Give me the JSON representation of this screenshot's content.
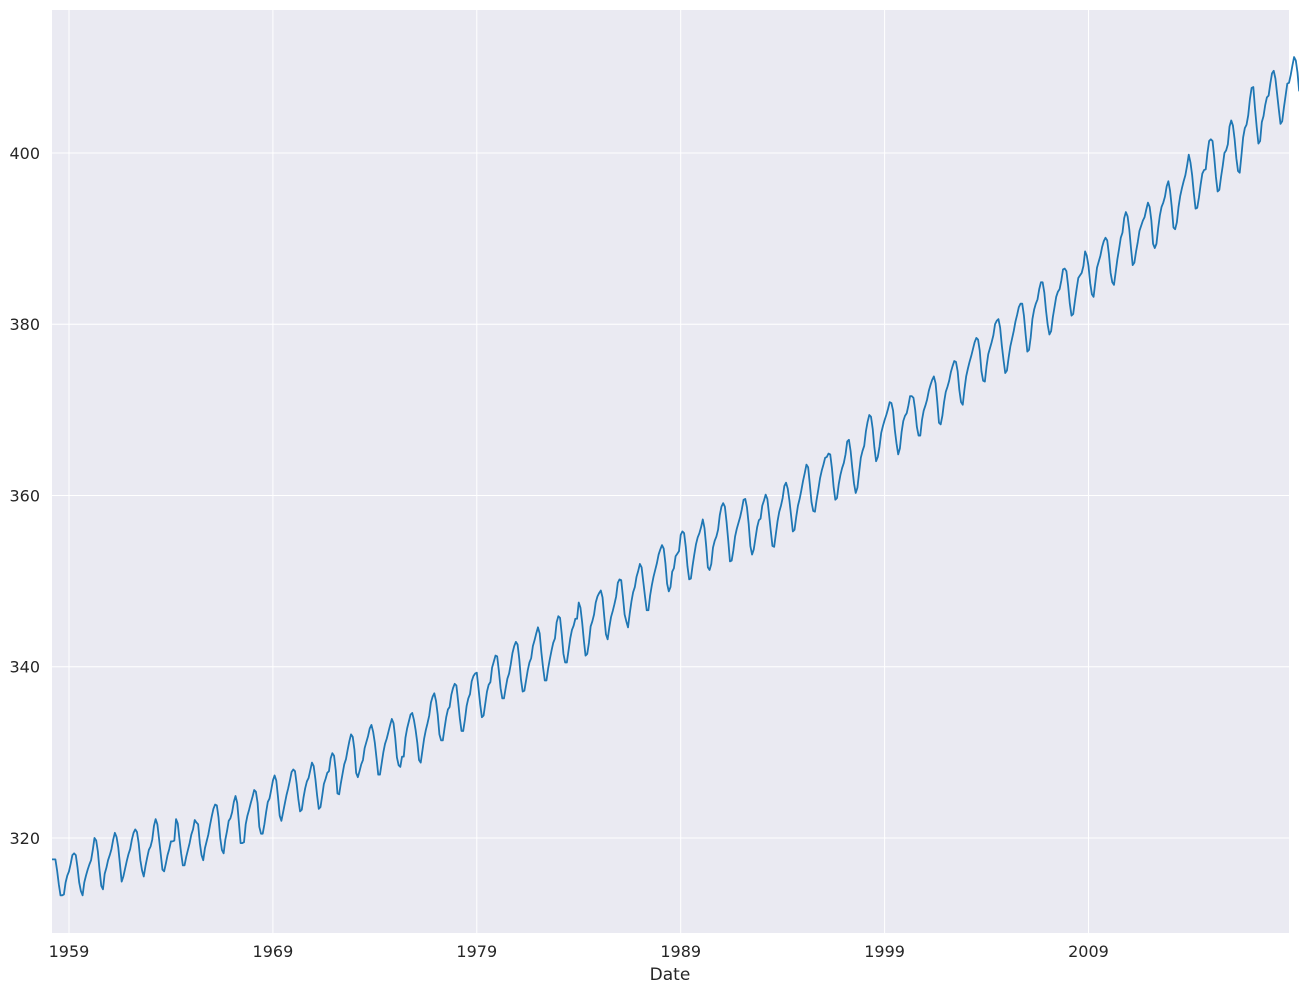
{
  "chart_data": {
    "type": "line",
    "title": "",
    "xlabel": "Date",
    "ylabel": "",
    "xlim": [
      "1958-03",
      "2018-11"
    ],
    "ylim": [
      308.9,
      416.7
    ],
    "x_ticks": [
      {
        "value": "1959-01",
        "label": "1959"
      },
      {
        "value": "1969-01",
        "label": "1969"
      },
      {
        "value": "1979-01",
        "label": "1979"
      },
      {
        "value": "1989-01",
        "label": "1989"
      },
      {
        "value": "1999-01",
        "label": "1999"
      },
      {
        "value": "2009-01",
        "label": "2009"
      }
    ],
    "y_ticks": [
      {
        "value": 320,
        "label": "320"
      },
      {
        "value": 340,
        "label": "340"
      },
      {
        "value": 360,
        "label": "360"
      },
      {
        "value": 380,
        "label": "380"
      },
      {
        "value": 400,
        "label": "400"
      }
    ],
    "grid": true,
    "background_color": "#eaeaf2",
    "grid_color": "#ffffff",
    "line_color": "#1f77b4",
    "series": [
      {
        "name": "",
        "x_start": "1958-03",
        "x_step": "1 month",
        "values": [
          317.5,
          317.5,
          317.5,
          316.2,
          314.6,
          313.3,
          313.3,
          313.4,
          314.8,
          315.6,
          316.1,
          317.0,
          318.0,
          318.2,
          318.0,
          316.6,
          314.8,
          313.8,
          313.3,
          314.8,
          315.6,
          316.3,
          316.9,
          317.4,
          318.6,
          320.0,
          319.7,
          318.4,
          316.2,
          314.4,
          314.0,
          315.8,
          316.5,
          317.4,
          318.0,
          318.7,
          319.8,
          320.6,
          320.1,
          318.9,
          316.9,
          314.9,
          315.5,
          316.4,
          317.3,
          318.1,
          318.7,
          319.8,
          320.6,
          321.0,
          320.7,
          319.4,
          317.4,
          316.2,
          315.5,
          316.7,
          317.7,
          318.6,
          319.0,
          319.8,
          321.4,
          322.2,
          321.6,
          319.9,
          318.1,
          316.3,
          316.1,
          317.0,
          318.0,
          318.7,
          319.6,
          319.6,
          319.7,
          322.2,
          321.7,
          319.9,
          318.2,
          316.8,
          316.8,
          317.8,
          318.6,
          319.4,
          320.4,
          321.0,
          322.1,
          321.8,
          321.6,
          319.4,
          318.0,
          317.4,
          318.8,
          319.6,
          320.4,
          321.5,
          322.5,
          323.4,
          323.9,
          323.8,
          322.4,
          320.0,
          318.6,
          318.2,
          319.8,
          320.8,
          322.0,
          322.3,
          323.0,
          324.2,
          324.9,
          324.1,
          321.8,
          319.4,
          319.4,
          319.5,
          321.6,
          322.6,
          323.3,
          324.1,
          324.8,
          325.6,
          325.4,
          324.1,
          321.3,
          320.5,
          320.5,
          321.6,
          323.0,
          324.2,
          324.6,
          325.6,
          326.7,
          327.3,
          326.7,
          324.8,
          322.6,
          322.0,
          323.0,
          324.0,
          325.0,
          325.8,
          326.7,
          327.7,
          328.0,
          327.8,
          326.3,
          324.5,
          323.1,
          323.3,
          324.7,
          325.8,
          326.6,
          327.0,
          327.9,
          328.8,
          328.4,
          326.9,
          325.0,
          323.4,
          323.6,
          324.9,
          326.3,
          326.9,
          327.6,
          327.8,
          329.3,
          329.9,
          329.6,
          327.9,
          325.2,
          325.1,
          326.4,
          327.5,
          328.6,
          329.2,
          330.3,
          331.3,
          332.1,
          331.8,
          330.3,
          327.6,
          327.1,
          327.8,
          328.6,
          329.1,
          330.5,
          331.2,
          331.9,
          332.8,
          333.2,
          332.4,
          331.1,
          329.3,
          327.4,
          327.4,
          328.7,
          330.0,
          331.0,
          331.6,
          332.4,
          333.2,
          333.9,
          333.4,
          331.7,
          329.4,
          328.5,
          328.3,
          329.5,
          329.5,
          331.7,
          332.8,
          333.6,
          334.4,
          334.6,
          333.8,
          332.6,
          331.1,
          329.1,
          328.8,
          330.2,
          331.6,
          332.6,
          333.4,
          334.3,
          335.8,
          336.5,
          336.9,
          336.0,
          334.4,
          332.1,
          331.4,
          331.4,
          332.8,
          334.1,
          335.0,
          335.3,
          336.7,
          337.5,
          338.0,
          337.8,
          336.0,
          334.0,
          332.5,
          332.5,
          333.8,
          335.4,
          336.3,
          336.8,
          338.3,
          338.9,
          339.2,
          339.3,
          337.5,
          335.6,
          334.1,
          334.3,
          335.7,
          337.1,
          337.9,
          338.2,
          339.9,
          340.6,
          341.3,
          341.2,
          339.5,
          337.5,
          336.3,
          336.3,
          337.5,
          338.6,
          339.2,
          340.3,
          341.6,
          342.4,
          342.9,
          342.6,
          340.9,
          338.5,
          337.1,
          337.2,
          338.4,
          339.6,
          340.5,
          341.0,
          342.4,
          343.1,
          343.9,
          344.6,
          343.9,
          341.7,
          339.9,
          338.4,
          338.4,
          339.8,
          340.9,
          341.9,
          342.8,
          343.3,
          345.2,
          345.9,
          345.7,
          343.8,
          341.5,
          340.5,
          340.5,
          341.9,
          343.3,
          344.3,
          344.8,
          345.6,
          345.6,
          347.5,
          346.9,
          345.2,
          343.1,
          341.3,
          341.5,
          342.8,
          344.7,
          345.3,
          346.1,
          347.5,
          348.2,
          348.6,
          348.9,
          348.1,
          345.9,
          343.8,
          343.2,
          344.6,
          345.8,
          346.5,
          347.3,
          348.2,
          349.8,
          350.2,
          350.1,
          348.2,
          346.1,
          345.3,
          344.6,
          346.2,
          347.6,
          348.7,
          349.3,
          350.5,
          351.2,
          352.0,
          351.6,
          349.9,
          348.2,
          346.6,
          346.6,
          348.3,
          349.5,
          350.5,
          351.3,
          352.1,
          353.1,
          353.7,
          354.2,
          353.8,
          352.1,
          349.7,
          348.8,
          349.3,
          351.1,
          351.5,
          352.9,
          353.2,
          353.5,
          355.4,
          355.8,
          355.6,
          354.0,
          351.7,
          350.2,
          350.3,
          351.8,
          353.1,
          354.3,
          355.1,
          355.6,
          356.3,
          357.2,
          356.2,
          354.1,
          351.6,
          351.3,
          352.0,
          353.9,
          354.7,
          355.2,
          356.0,
          357.7,
          358.7,
          359.1,
          358.7,
          356.9,
          354.7,
          352.3,
          352.4,
          353.6,
          355.2,
          356.1,
          356.8,
          357.5,
          358.4,
          359.5,
          359.6,
          358.6,
          356.7,
          354.1,
          353.1,
          353.7,
          355.0,
          356.3,
          357.1,
          357.3,
          358.8,
          359.4,
          360.1,
          359.6,
          357.8,
          355.9,
          354.1,
          354.0,
          355.5,
          357.0,
          358.1,
          358.8,
          359.7,
          361.1,
          361.5,
          360.8,
          359.4,
          357.6,
          355.8,
          356.0,
          357.5,
          358.8,
          359.6,
          360.6,
          361.7,
          362.6,
          363.6,
          363.3,
          361.3,
          359.2,
          358.2,
          358.1,
          359.5,
          360.7,
          362.0,
          362.9,
          363.6,
          364.4,
          364.5,
          364.9,
          364.8,
          363.2,
          361.0,
          359.5,
          359.7,
          361.3,
          362.4,
          363.2,
          363.8,
          364.8,
          366.3,
          366.5,
          365.2,
          363.2,
          361.4,
          360.3,
          360.9,
          362.7,
          364.4,
          365.2,
          365.8,
          367.5,
          368.6,
          369.4,
          369.2,
          367.8,
          365.6,
          364.0,
          364.5,
          365.7,
          367.3,
          368.1,
          368.8,
          369.4,
          370.1,
          370.9,
          370.8,
          369.9,
          367.7,
          366.1,
          364.8,
          365.5,
          367.4,
          368.7,
          369.3,
          369.6,
          370.5,
          371.6,
          371.6,
          371.4,
          370.0,
          368.0,
          367.0,
          367.0,
          368.8,
          369.9,
          370.5,
          371.2,
          372.2,
          372.9,
          373.5,
          373.9,
          373.1,
          371.0,
          368.5,
          368.3,
          369.3,
          370.9,
          372.1,
          372.7,
          373.4,
          374.4,
          375.1,
          375.7,
          375.6,
          374.5,
          372.3,
          370.9,
          370.6,
          372.4,
          373.9,
          374.8,
          375.6,
          376.3,
          377.1,
          377.9,
          378.4,
          378.2,
          376.9,
          374.5,
          373.4,
          373.3,
          375.1,
          376.5,
          377.2,
          377.9,
          378.7,
          380.0,
          380.4,
          380.6,
          379.6,
          377.5,
          375.8,
          374.3,
          374.6,
          376.1,
          377.4,
          378.3,
          379.2,
          380.3,
          381.1,
          382.0,
          382.4,
          382.4,
          381.0,
          378.8,
          376.8,
          377.0,
          378.5,
          380.6,
          381.7,
          382.4,
          382.9,
          384.1,
          384.9,
          384.9,
          383.7,
          381.6,
          379.9,
          378.8,
          379.2,
          380.8,
          382.0,
          383.2,
          383.8,
          384.1,
          385.1,
          386.4,
          386.5,
          386.2,
          384.5,
          382.4,
          381.0,
          381.2,
          382.7,
          384.1,
          385.4,
          385.7,
          386.0,
          386.8,
          388.5,
          388.0,
          386.8,
          384.8,
          383.5,
          383.2,
          384.9,
          386.6,
          387.3,
          388.0,
          389.0,
          389.7,
          390.1,
          389.8,
          388.2,
          386.0,
          384.9,
          384.6,
          386.1,
          387.6,
          388.8,
          390.1,
          390.7,
          392.4,
          393.1,
          392.6,
          391.1,
          388.9,
          386.9,
          387.2,
          388.5,
          389.6,
          390.9,
          391.5,
          392.1,
          392.5,
          393.4,
          394.2,
          393.7,
          392.1,
          389.4,
          388.9,
          389.4,
          391.2,
          392.7,
          393.7,
          394.2,
          394.9,
          396.1,
          396.7,
          395.6,
          393.7,
          391.3,
          391.1,
          391.9,
          393.7,
          395.0,
          395.9,
          396.7,
          397.4,
          398.5,
          399.8,
          398.9,
          397.4,
          395.3,
          393.5,
          393.6,
          394.8,
          396.3,
          397.6,
          398.0,
          398.1,
          400.0,
          401.4,
          401.6,
          401.4,
          399.5,
          397.2,
          395.5,
          395.7,
          397.2,
          398.5,
          400.0,
          400.3,
          401.0,
          403.1,
          403.8,
          403.2,
          401.6,
          399.4,
          397.9,
          397.7,
          399.7,
          401.8,
          402.9,
          403.3,
          404.4,
          406.3,
          407.6,
          407.7,
          405.2,
          403.0,
          401.1,
          401.4,
          403.6,
          404.3,
          405.6,
          406.5,
          406.7,
          408.1,
          409.3,
          409.6,
          408.7,
          406.9,
          405.1,
          403.4,
          403.7,
          405.3,
          406.7,
          408.1,
          408.2,
          409.1,
          410.2,
          411.2,
          410.8,
          409.4,
          407.2
        ]
      }
    ]
  }
}
